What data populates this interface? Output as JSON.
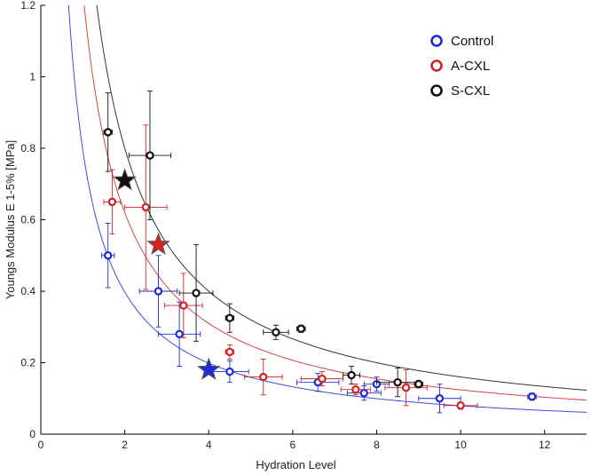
{
  "chart_data": {
    "type": "scatter",
    "title": "",
    "xlabel": "Hydration Level",
    "ylabel": "Youngs Modulus E 1-5% [MPa]",
    "xlim": [
      0,
      13
    ],
    "ylim": [
      0,
      1.2
    ],
    "grid": false,
    "legend_position": "top-right",
    "x_ticks": [
      "0",
      "2",
      "4",
      "6",
      "8",
      "10",
      "12"
    ],
    "y_ticks": [
      "0",
      "0.2",
      "0.4",
      "0.6",
      "0.8",
      "1",
      "1.2"
    ],
    "series": [
      {
        "name": "Control",
        "color": "#1f2bd6",
        "points": [
          {
            "x": 1.6,
            "y": 0.5,
            "xerr": 0.15,
            "yerr": 0.09
          },
          {
            "x": 2.8,
            "y": 0.4,
            "xerr": 0.45,
            "yerr": 0.1
          },
          {
            "x": 3.3,
            "y": 0.28,
            "xerr": 0.5,
            "yerr": 0.09
          },
          {
            "x": 4.5,
            "y": 0.175,
            "xerr": 0.45,
            "yerr": 0.03
          },
          {
            "x": 6.6,
            "y": 0.145,
            "xerr": 0.5,
            "yerr": 0.025
          },
          {
            "x": 7.7,
            "y": 0.115,
            "xerr": 0.4,
            "yerr": 0.02
          },
          {
            "x": 8.0,
            "y": 0.14,
            "xerr": 0.3,
            "yerr": 0.02
          },
          {
            "x": 9.5,
            "y": 0.1,
            "xerr": 0.5,
            "yerr": 0.04
          },
          {
            "x": 11.7,
            "y": 0.105,
            "xerr": 0.1,
            "yerr": 0.01
          }
        ],
        "star": {
          "x": 4.0,
          "y": 0.18
        },
        "fit_k": 0.795
      },
      {
        "name": "A-CXL",
        "color": "#d42222",
        "points": [
          {
            "x": 1.7,
            "y": 0.65,
            "xerr": 0.2,
            "yerr": 0.09
          },
          {
            "x": 2.5,
            "y": 0.635,
            "xerr": 0.5,
            "yerr": 0.23
          },
          {
            "x": 3.4,
            "y": 0.36,
            "xerr": 0.45,
            "yerr": 0.09
          },
          {
            "x": 4.5,
            "y": 0.23,
            "xerr": 0.1,
            "yerr": 0.02
          },
          {
            "x": 5.3,
            "y": 0.16,
            "xerr": 0.45,
            "yerr": 0.05
          },
          {
            "x": 6.7,
            "y": 0.155,
            "xerr": 0.5,
            "yerr": 0.02
          },
          {
            "x": 7.5,
            "y": 0.125,
            "xerr": 0.35,
            "yerr": 0.015
          },
          {
            "x": 8.7,
            "y": 0.13,
            "xerr": 0.5,
            "yerr": 0.05
          },
          {
            "x": 10.0,
            "y": 0.08,
            "xerr": 0.4,
            "yerr": 0.01
          }
        ],
        "star": {
          "x": 2.8,
          "y": 0.53
        },
        "fit_k": 1.24
      },
      {
        "name": "S-CXL",
        "color": "#111111",
        "points": [
          {
            "x": 1.6,
            "y": 0.845,
            "xerr": 0.1,
            "yerr": 0.11
          },
          {
            "x": 2.6,
            "y": 0.78,
            "xerr": 0.5,
            "yerr": 0.18
          },
          {
            "x": 3.7,
            "y": 0.395,
            "xerr": 0.4,
            "yerr": 0.135
          },
          {
            "x": 4.5,
            "y": 0.325,
            "xerr": 0.1,
            "yerr": 0.04
          },
          {
            "x": 5.6,
            "y": 0.285,
            "xerr": 0.3,
            "yerr": 0.02
          },
          {
            "x": 6.2,
            "y": 0.295,
            "xerr": 0.1,
            "yerr": 0.01
          },
          {
            "x": 7.4,
            "y": 0.165,
            "xerr": 0.2,
            "yerr": 0.025
          },
          {
            "x": 8.5,
            "y": 0.145,
            "xerr": 0.5,
            "yerr": 0.04
          },
          {
            "x": 9.0,
            "y": 0.14,
            "xerr": 0.1,
            "yerr": 0.01
          }
        ],
        "star": {
          "x": 2.0,
          "y": 0.71
        },
        "fit_k": 1.6
      }
    ]
  }
}
